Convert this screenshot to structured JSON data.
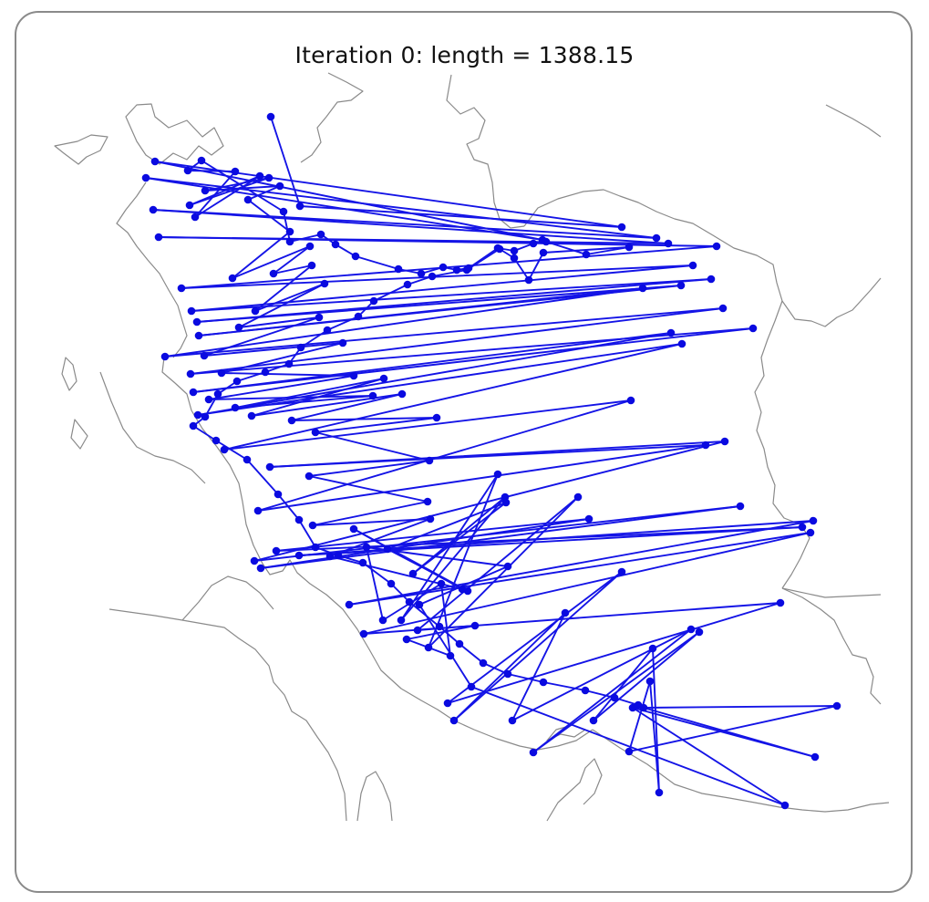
{
  "chart_data": {
    "type": "line",
    "title": "Iteration 0: length = 1388.15",
    "subtitle": "",
    "xlabel": "",
    "ylabel": "",
    "grid": false,
    "legend": "none",
    "basemap": "country-borders",
    "series": [
      {
        "style": "route",
        "points": [
          [
            297,
            128
          ],
          [
            329,
            226
          ],
          [
            682,
            249
          ],
          [
            170,
            177
          ],
          [
            595,
            263
          ],
          [
            160,
            195
          ],
          [
            720,
            261
          ],
          [
            168,
            230
          ],
          [
            733,
            267
          ],
          [
            174,
            260
          ],
          [
            786,
            270
          ],
          [
            199,
            316
          ],
          [
            760,
            291
          ],
          [
            210,
            341
          ],
          [
            780,
            306
          ],
          [
            216,
            353
          ],
          [
            747,
            313
          ],
          [
            218,
            368
          ],
          [
            705,
            316
          ],
          [
            181,
            391
          ],
          [
            793,
            338
          ],
          [
            209,
            410
          ],
          [
            826,
            360
          ],
          [
            212,
            430
          ],
          [
            736,
            365
          ],
          [
            217,
            455
          ],
          [
            748,
            377
          ],
          [
            246,
            493
          ],
          [
            692,
            439
          ],
          [
            283,
            560
          ],
          [
            774,
            488
          ],
          [
            296,
            512
          ],
          [
            795,
            484
          ],
          [
            279,
            615
          ],
          [
            812,
            555
          ],
          [
            286,
            623
          ],
          [
            646,
            569
          ],
          [
            303,
            604
          ],
          [
            880,
            578
          ],
          [
            328,
            609
          ],
          [
            892,
            571
          ],
          [
            383,
            663
          ],
          [
            889,
            584
          ],
          [
            399,
            695
          ],
          [
            856,
            661
          ],
          [
            491,
            771
          ],
          [
            682,
            627
          ],
          [
            498,
            790
          ],
          [
            620,
            672
          ],
          [
            562,
            790
          ],
          [
            758,
            690
          ],
          [
            585,
            825
          ],
          [
            767,
            693
          ],
          [
            651,
            790
          ],
          [
            716,
            711
          ],
          [
            723,
            869
          ],
          [
            713,
            747
          ],
          [
            690,
            824
          ],
          [
            918,
            774
          ],
          [
            706,
            776
          ],
          [
            894,
            830
          ],
          [
            694,
            776
          ],
          [
            861,
            883
          ],
          [
            517,
            753
          ],
          [
            460,
            663
          ],
          [
            557,
            621
          ],
          [
            402,
            600
          ],
          [
            420,
            680
          ],
          [
            484,
            640
          ],
          [
            494,
            719
          ],
          [
            446,
            701
          ],
          [
            521,
            686
          ],
          [
            458,
            691
          ],
          [
            634,
            545
          ],
          [
            470,
            710
          ],
          [
            546,
            520
          ],
          [
            440,
            680
          ],
          [
            554,
            545
          ],
          [
            453,
            629
          ],
          [
            555,
            551
          ],
          [
            425,
            602
          ],
          [
            513,
            648
          ],
          [
            388,
            580
          ],
          [
            507,
            646
          ],
          [
            362,
            610
          ],
          [
            472,
            569
          ],
          [
            343,
            576
          ],
          [
            469,
            550
          ],
          [
            339,
            522
          ],
          [
            471,
            505
          ],
          [
            346,
            474
          ],
          [
            479,
            458
          ],
          [
            320,
            461
          ],
          [
            441,
            432
          ],
          [
            276,
            456
          ],
          [
            421,
            415
          ],
          [
            258,
            447
          ],
          [
            409,
            434
          ],
          [
            229,
            438
          ],
          [
            388,
            412
          ],
          [
            243,
            409
          ],
          [
            376,
            376
          ],
          [
            224,
            390
          ],
          [
            350,
            348
          ],
          [
            262,
            359
          ],
          [
            356,
            311
          ],
          [
            280,
            341
          ],
          [
            342,
            291
          ],
          [
            300,
            300
          ],
          [
            340,
            270
          ],
          [
            255,
            305
          ],
          [
            318,
            254
          ],
          [
            272,
            219
          ],
          [
            307,
            204
          ],
          [
            225,
            209
          ],
          [
            295,
            195
          ],
          [
            208,
            225
          ],
          [
            285,
            193
          ],
          [
            214,
            238
          ],
          [
            258,
            188
          ],
          [
            206,
            187
          ],
          [
            221,
            176
          ],
          [
            311,
            232
          ],
          [
            318,
            265
          ],
          [
            352,
            257
          ],
          [
            368,
            268
          ],
          [
            390,
            281
          ],
          [
            437,
            295
          ],
          [
            462,
            300
          ],
          [
            486,
            293
          ],
          [
            501,
            296
          ],
          [
            514,
            294
          ],
          [
            546,
            272
          ],
          [
            564,
            275
          ],
          [
            585,
            267
          ],
          [
            599,
            265
          ],
          [
            643,
            279
          ],
          [
            690,
            271
          ],
          [
            596,
            277
          ],
          [
            580,
            307
          ],
          [
            564,
            283
          ],
          [
            548,
            273
          ],
          [
            512,
            296
          ],
          [
            474,
            303
          ],
          [
            447,
            312
          ],
          [
            410,
            330
          ],
          [
            393,
            347
          ],
          [
            359,
            362
          ],
          [
            330,
            381
          ],
          [
            317,
            399
          ],
          [
            291,
            408
          ],
          [
            260,
            418
          ],
          [
            239,
            432
          ],
          [
            225,
            457
          ],
          [
            212,
            467
          ],
          [
            237,
            483
          ],
          [
            271,
            504
          ],
          [
            305,
            542
          ],
          [
            328,
            570
          ],
          [
            346,
            600
          ],
          [
            371,
            609
          ],
          [
            398,
            617
          ],
          [
            429,
            640
          ],
          [
            449,
            660
          ],
          [
            482,
            687
          ],
          [
            504,
            706
          ],
          [
            530,
            727
          ],
          [
            557,
            739
          ],
          [
            596,
            748
          ],
          [
            642,
            757
          ],
          [
            674,
            765
          ],
          [
            700,
            773
          ]
        ]
      }
    ]
  },
  "colors": {
    "route": "#1414e6",
    "point": "#0a0ae0",
    "border": "#8a8a8a",
    "frame": "#8a8a8a",
    "title": "#111111"
  }
}
